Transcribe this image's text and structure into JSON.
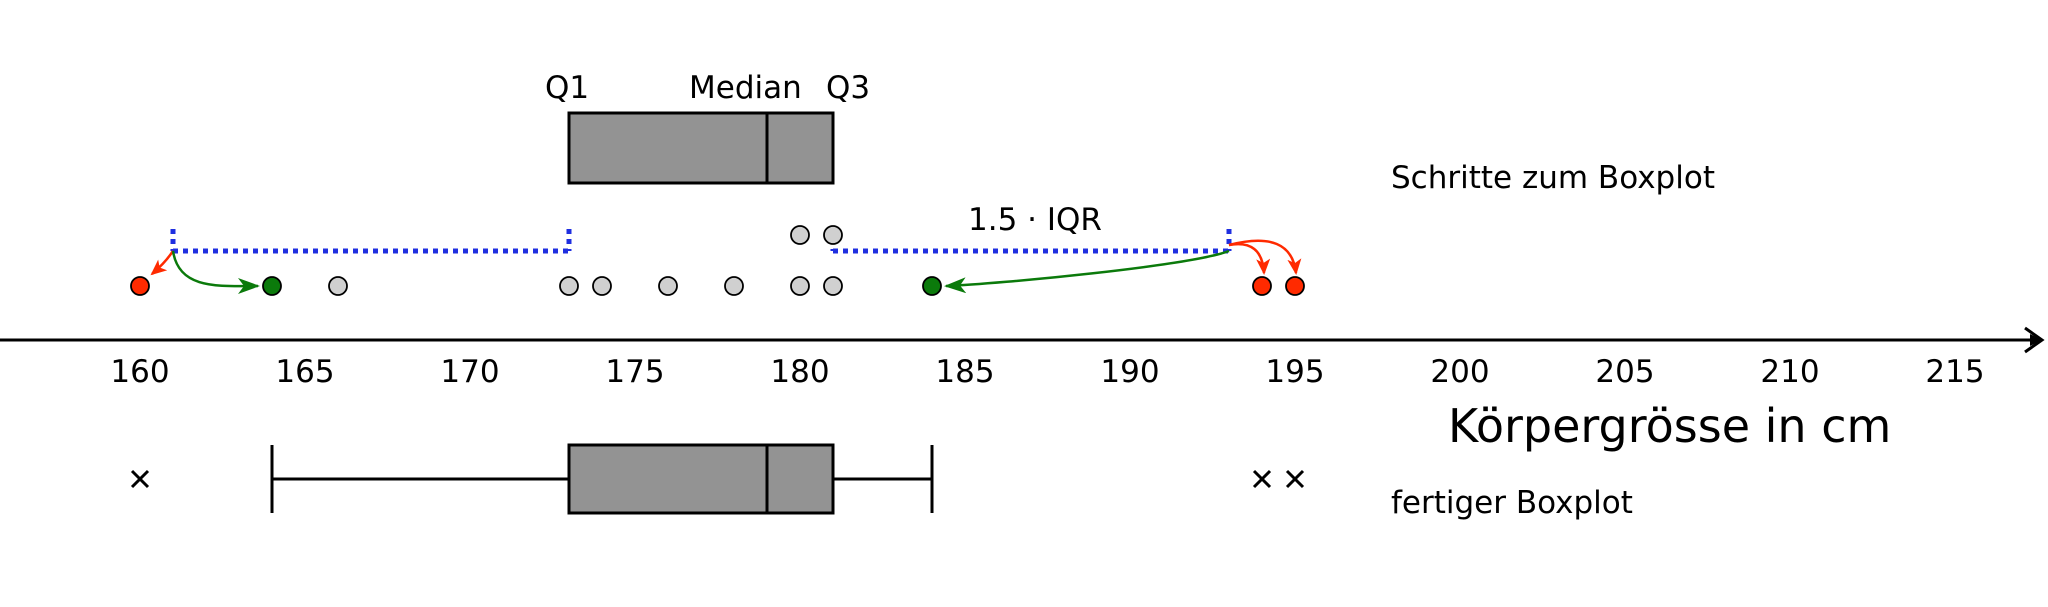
{
  "labels": {
    "q1": "Q1",
    "median": "Median",
    "q3": "Q3",
    "iqr_note": "1.5 · IQR",
    "steps_caption": "Schritte zum Boxplot",
    "final_caption": "fertiger Boxplot",
    "axis_title": "Körpergrösse in cm"
  },
  "axis": {
    "min": 155,
    "max": 217,
    "ticks": [
      160,
      165,
      170,
      175,
      180,
      185,
      190,
      195,
      200,
      205,
      210,
      215
    ]
  },
  "stats": {
    "q1": 173,
    "median": 179,
    "q3": 181,
    "lower_fence": 161,
    "upper_fence": 193,
    "whisker_low": 164,
    "whisker_high": 184
  },
  "points": {
    "row": [
      {
        "value": 160,
        "kind": "outlier"
      },
      {
        "value": 164,
        "kind": "whisker-end"
      },
      {
        "value": 166,
        "kind": "normal"
      },
      {
        "value": 173,
        "kind": "normal"
      },
      {
        "value": 174,
        "kind": "normal"
      },
      {
        "value": 176,
        "kind": "normal"
      },
      {
        "value": 178,
        "kind": "normal"
      },
      {
        "value": 180,
        "kind": "normal"
      },
      {
        "value": 181,
        "kind": "normal"
      },
      {
        "value": 184,
        "kind": "whisker-end"
      },
      {
        "value": 194,
        "kind": "outlier"
      },
      {
        "value": 195,
        "kind": "outlier"
      }
    ],
    "stacked": [
      180,
      181
    ],
    "final_outliers": [
      160,
      194,
      195
    ]
  },
  "colors": {
    "box": "#939393",
    "point": "#d0d0d0",
    "outlier": "#ff2a00",
    "whisker_end": "#0b7a0b",
    "fence": "#1f2fe0",
    "arrow_red": "#ff2a00",
    "arrow_green": "#0b7a0b"
  }
}
